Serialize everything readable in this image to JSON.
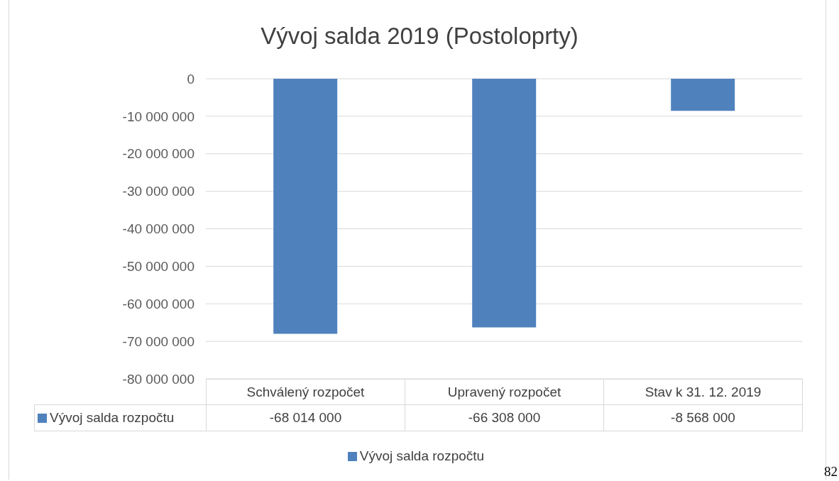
{
  "chart_data": {
    "type": "bar",
    "title": "Vývoj salda 2019 (Postoloprty)",
    "categories": [
      "Schválený rozpočet",
      "Upravený rozpočet",
      "Stav k 31. 12. 2019"
    ],
    "series": [
      {
        "name": "Vývoj salda rozpočtu",
        "color": "#4f81bd",
        "values": [
          -68014000,
          -66308000,
          -8568000
        ],
        "value_labels": [
          "-68 014 000",
          "-66 308 000",
          "-8 568 000"
        ]
      }
    ],
    "ylim": [
      -80000000,
      0
    ],
    "yticks": [
      {
        "value": 0,
        "label": "0"
      },
      {
        "value": -10000000,
        "label": "-10 000 000"
      },
      {
        "value": -20000000,
        "label": "-20 000 000"
      },
      {
        "value": -30000000,
        "label": "-30 000 000"
      },
      {
        "value": -40000000,
        "label": "-40 000 000"
      },
      {
        "value": -50000000,
        "label": "-50 000 000"
      },
      {
        "value": -60000000,
        "label": "-60 000 000"
      },
      {
        "value": -70000000,
        "label": "-70 000 000"
      },
      {
        "value": -80000000,
        "label": "-80 000 000"
      }
    ],
    "grid": "y",
    "legend": "bottom",
    "annotations": [
      "82"
    ]
  }
}
